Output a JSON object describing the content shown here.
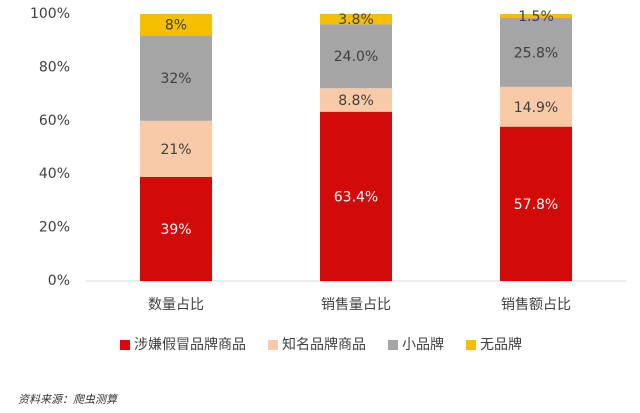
{
  "chart_data": {
    "type": "stacked_bar",
    "categories": [
      "数量占比",
      "销售量占比",
      "销售额占比"
    ],
    "series": [
      {
        "name": "涉嫌假冒品牌商品",
        "color": "#d20a0a",
        "values": [
          39,
          63.4,
          57.8
        ],
        "value_labels": [
          "39%",
          "63.4%",
          "57.8%"
        ]
      },
      {
        "name": "知名品牌商品",
        "color": "#f9caa7",
        "values": [
          21,
          8.8,
          14.9
        ],
        "value_labels": [
          "21%",
          "8.8%",
          "14.9%"
        ]
      },
      {
        "name": "小品牌",
        "color": "#a5a5a5",
        "values": [
          32,
          24.0,
          25.8
        ],
        "value_labels": [
          "32%",
          "24.0%",
          "25.8%"
        ]
      },
      {
        "name": "无品牌",
        "color": "#f5bf00",
        "values": [
          8,
          3.8,
          1.5
        ],
        "value_labels": [
          "8%",
          "3.8%",
          "1.5%"
        ]
      }
    ],
    "ylim": [
      0,
      100
    ],
    "yticks": [
      {
        "value": 0,
        "label": "0%"
      },
      {
        "value": 20,
        "label": "20%"
      },
      {
        "value": 40,
        "label": "40%"
      },
      {
        "value": 60,
        "label": "60%"
      },
      {
        "value": 80,
        "label": "80%"
      },
      {
        "value": 100,
        "label": "100%"
      }
    ],
    "grid": false,
    "legend": "bottom",
    "source": "资料来源：爬虫测算"
  }
}
